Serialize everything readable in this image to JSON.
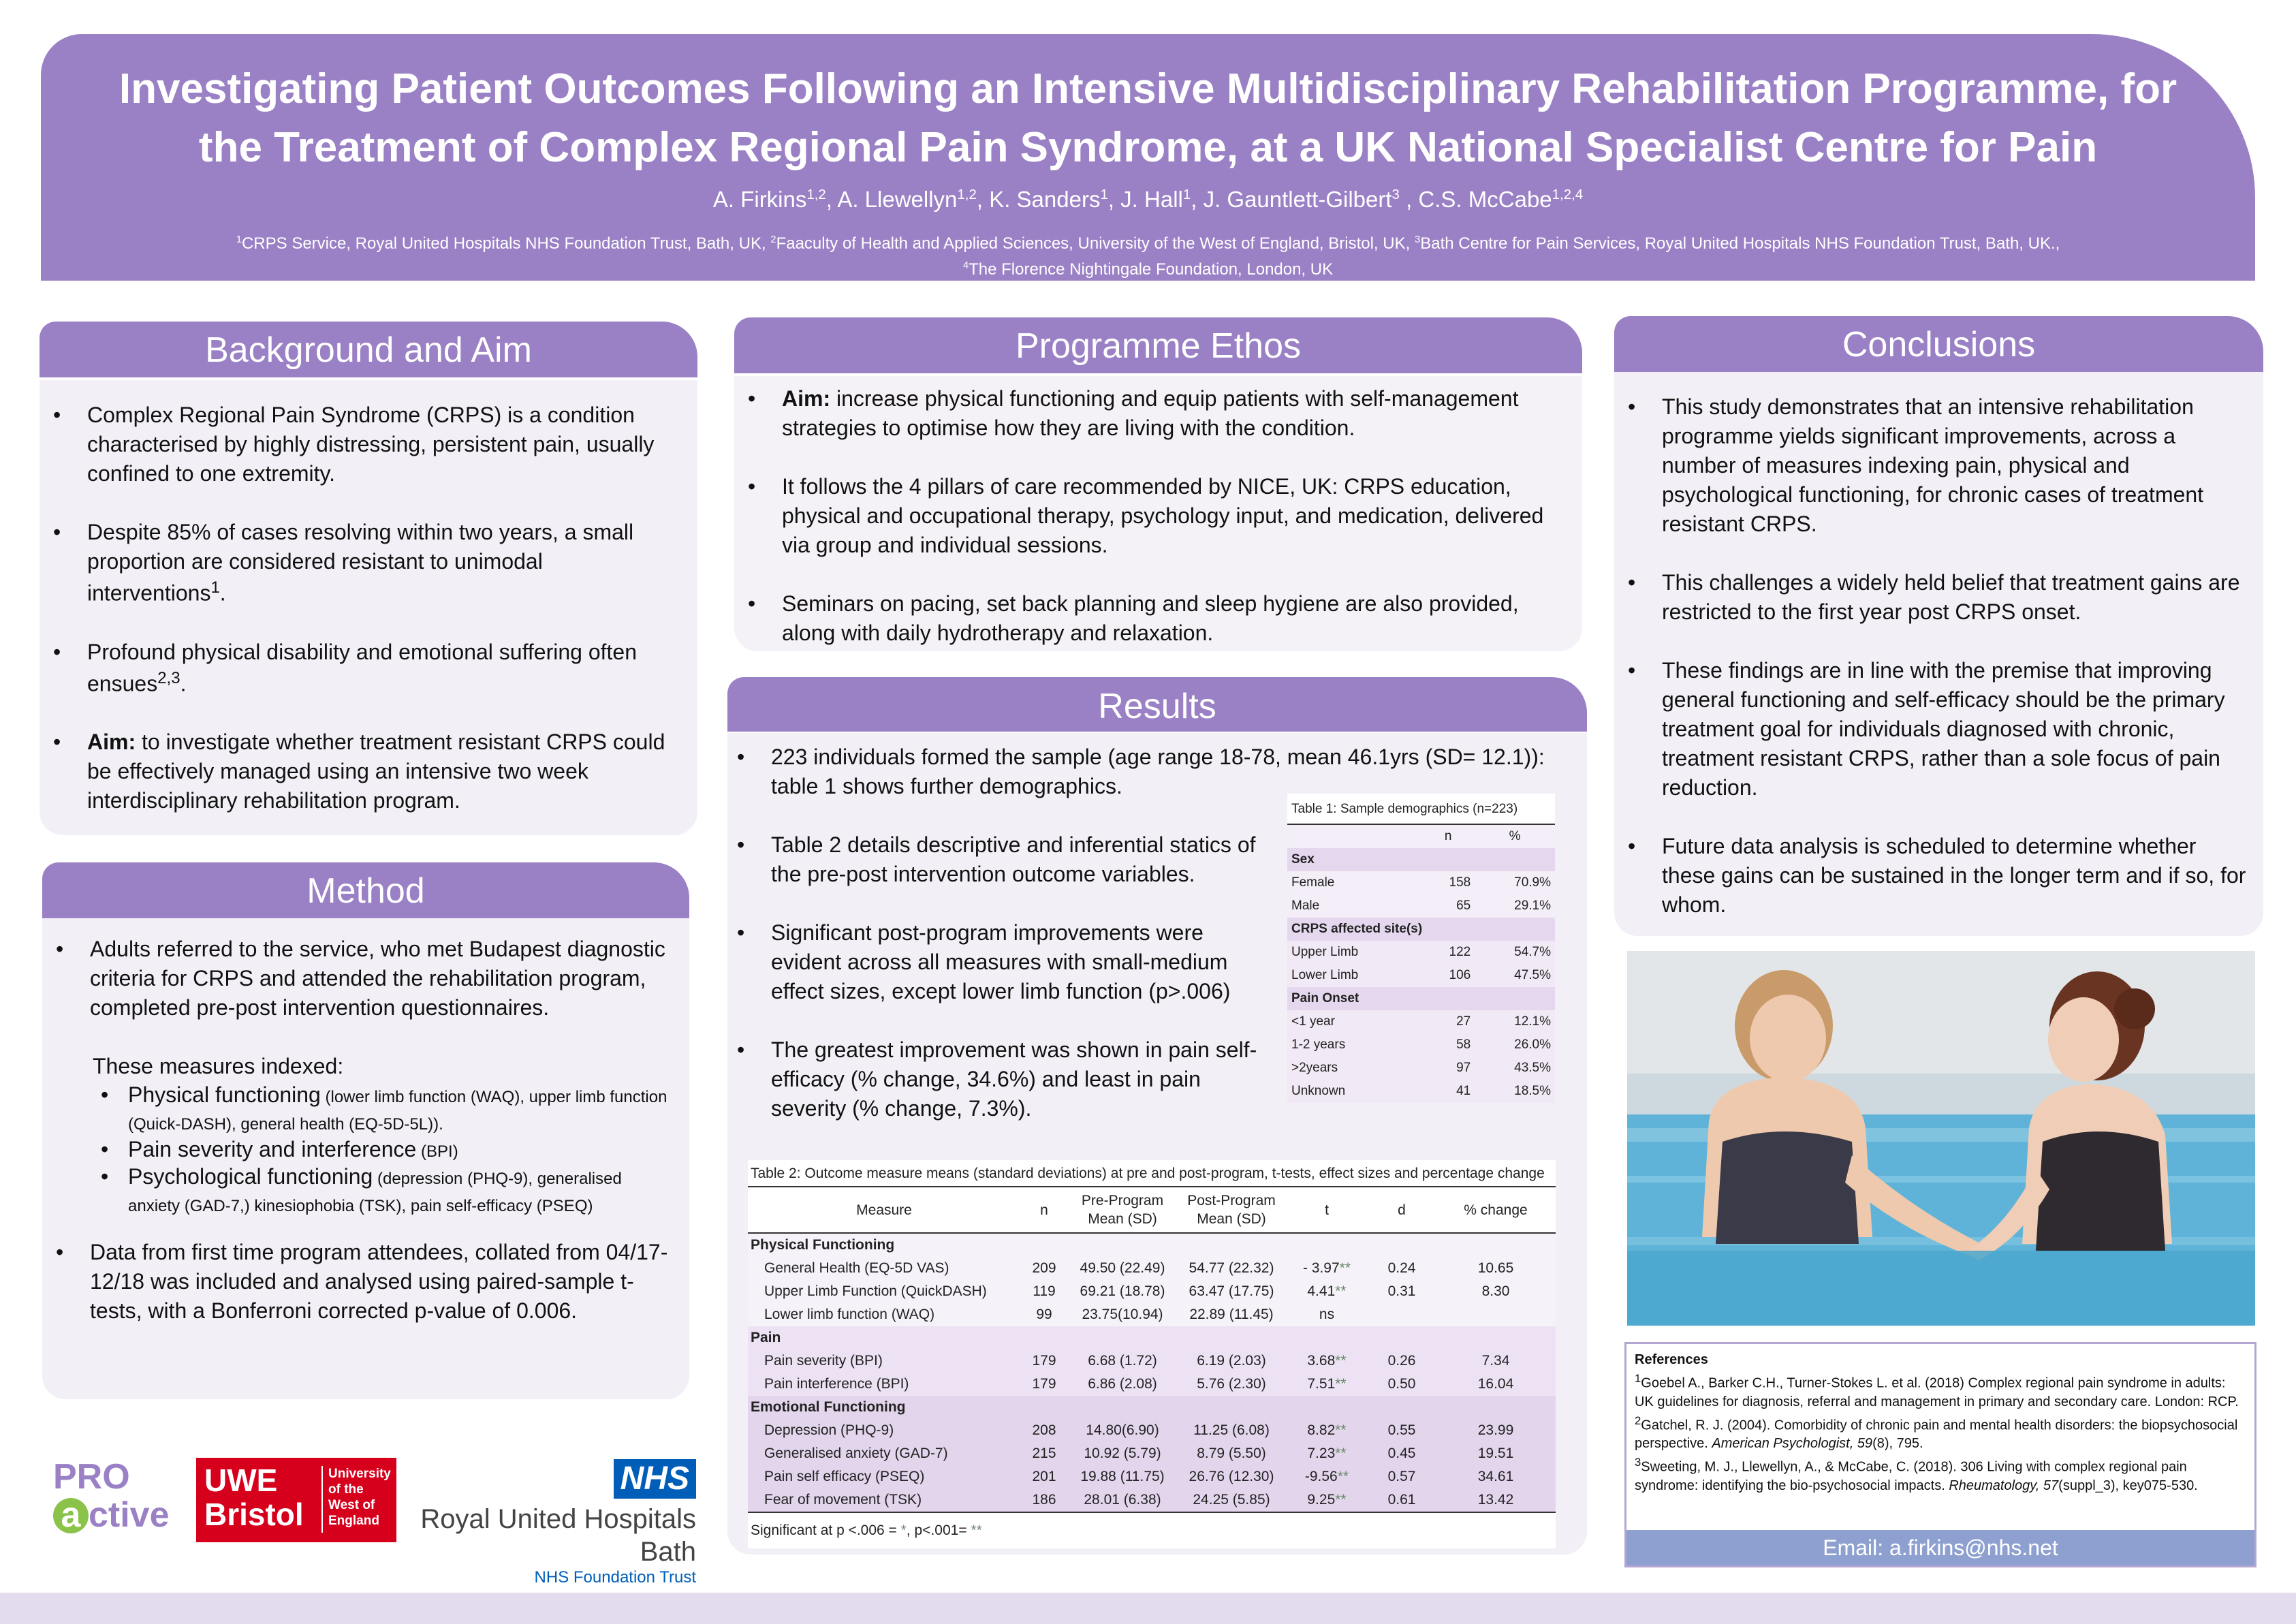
{
  "header": {
    "title": "Investigating Patient Outcomes Following an Intensive Multidisciplinary Rehabilitation Programme, for the Treatment of Complex Regional Pain Syndrome, at a UK National Specialist Centre for Pain",
    "authors": [
      {
        "name": "A. Firkins",
        "sup": "1,2"
      },
      {
        "name": "A. Llewellyn",
        "sup": "1,2"
      },
      {
        "name": "K. Sanders",
        "sup": "1"
      },
      {
        "name": "J. Hall",
        "sup": "1"
      },
      {
        "name": "J. Gauntlett-Gilbert",
        "sup": "3"
      },
      {
        "name": "C.S. McCabe",
        "sup": "1,2,4"
      }
    ],
    "affiliations": [
      {
        "sup": "1",
        "text": "CRPS Service, Royal United Hospitals NHS Foundation Trust, Bath, UK, "
      },
      {
        "sup": "2",
        "text": "Faaculty of Health and Applied Sciences, University of the West of England, Bristol, UK, "
      },
      {
        "sup": "3",
        "text": "Bath Centre for Pain Services, Royal United Hospitals NHS Foundation Trust, Bath, UK.,"
      },
      {
        "sup": "4",
        "text": "The Florence Nightingale Foundation, London, UK"
      }
    ]
  },
  "background": {
    "heading": "Background and Aim",
    "bullets": [
      {
        "text": "Complex Regional Pain Syndrome (CRPS) is a condition characterised by highly distressing, persistent pain, usually confined to one extremity."
      },
      {
        "text": "Despite 85% of cases resolving within two years, a small proportion are considered resistant to unimodal interventions",
        "sup": "1",
        "tail": "."
      },
      {
        "text": "Profound physical disability and emotional suffering often ensues",
        "sup": "2,3",
        "tail": "."
      },
      {
        "bold": "Aim:",
        "text": " to investigate whether treatment resistant CRPS could be effectively managed using an intensive two week interdisciplinary rehabilitation program."
      }
    ]
  },
  "method": {
    "heading": "Method",
    "intro": "Adults referred to the service, who met Budapest diagnostic criteria for CRPS and attended the rehabilitation program, completed pre-post intervention questionnaires.",
    "measures_label": "These measures indexed:",
    "measures": [
      {
        "main": "Physical functioning",
        "detail": " (lower limb function  (WAQ), upper limb function (Quick-DASH), general health (EQ-5D-5L))."
      },
      {
        "main": "Pain  severity  and interference",
        "detail": " (BPI)"
      },
      {
        "main": "Psychological functioning",
        "detail": " (depression (PHQ-9),  generalised anxiety (GAD-7,) kinesiophobia (TSK),  pain self-efficacy (PSEQ)"
      }
    ],
    "data_text": "Data from first time program attendees, collated from 04/17- 12/18 was included and analysed using paired-sample t-tests, with a Bonferroni corrected p-value of 0.006."
  },
  "ethos": {
    "heading": "Programme Ethos",
    "bullets": [
      {
        "bold": "Aim:",
        "text": " increase physical functioning and equip patients with self-management strategies to optimise how they are living with the condition."
      },
      {
        "text": "It follows the 4 pillars of care recommended by NICE, UK: CRPS education, physical and occupational therapy, psychology input, and medication, delivered via group and individual sessions."
      },
      {
        "text": "Seminars on pacing, set back planning and sleep hygiene are also provided, along with  daily hydrotherapy and relaxation."
      }
    ]
  },
  "results": {
    "heading": "Results",
    "bullets": [
      {
        "text": "223 individuals formed the sample (age range 18-78, mean 46.1yrs (SD= 12.1)): table 1 shows further demographics."
      },
      {
        "text": "Table 2 details descriptive and inferential statics of the pre-post intervention outcome variables."
      },
      {
        "text": "Significant  post-program improvements were evident across all measures with small-medium effect sizes, except lower limb function (p>.006)"
      },
      {
        "text": " The greatest improvement was shown in pain self-efficacy (% change, 34.6%) and least in pain severity (% change, 7.3%)."
      }
    ]
  },
  "table1": {
    "caption": "Table 1: Sample demographics (n=223)",
    "col_n": "n",
    "col_pct": "%",
    "sections": [
      {
        "title": "Sex",
        "rows": [
          [
            "Female",
            "158",
            "70.9%"
          ],
          [
            "Male",
            "65",
            "29.1%"
          ]
        ]
      },
      {
        "title": "CRPS affected site(s)",
        "rows": [
          [
            "Upper Limb",
            "122",
            "54.7%"
          ],
          [
            "Lower Limb",
            "106",
            "47.5%"
          ]
        ]
      },
      {
        "title": "Pain Onset",
        "rows": [
          [
            "<1 year",
            "27",
            "12.1%"
          ],
          [
            "1-2 years",
            "58",
            "26.0%"
          ],
          [
            ">2years",
            "97",
            "43.5%"
          ],
          [
            "Unknown",
            "41",
            "18.5%"
          ]
        ]
      }
    ]
  },
  "table2": {
    "caption": "Table 2: Outcome measure means (standard deviations) at pre and post-program, t-tests, effect sizes and percentage change",
    "headers": [
      "Measure",
      "n",
      "Pre-Program Mean (SD)",
      "Post-Program Mean (SD)",
      "t",
      "d",
      "% change"
    ],
    "sections": [
      {
        "title": "Physical Functioning",
        "rows": [
          {
            "measure": "General Health (EQ-5D VAS)",
            "n": "209",
            "pre": "49.50 (22.49)",
            "post": "54.77 (22.32)",
            "t": "- 3.97",
            "star": "**",
            "d": "0.24",
            "pct": "10.65"
          },
          {
            "measure": "Upper Limb Function (QuickDASH)",
            "n": "119",
            "pre": "69.21 (18.78)",
            "post": "63.47 (17.75)",
            "t": "4.41",
            "star": "**",
            "d": "0.31",
            "pct": "8.30"
          },
          {
            "measure": "Lower limb function (WAQ)",
            "n": "99",
            "pre": "23.75(10.94)",
            "post": "22.89 (11.45)",
            "t": "ns",
            "star": "",
            "d": "",
            "pct": ""
          }
        ]
      },
      {
        "title": "Pain",
        "rows": [
          {
            "measure": "Pain severity (BPI)",
            "n": "179",
            "pre": "6.68 (1.72)",
            "post": "6.19 (2.03)",
            "t": "3.68",
            "star": "**",
            "d": "0.26",
            "pct": "7.34"
          },
          {
            "measure": "Pain interference (BPI)",
            "n": "179",
            "pre": "6.86 (2.08)",
            "post": "5.76 (2.30)",
            "t": "7.51",
            "star": "**",
            "d": "0.50",
            "pct": "16.04"
          }
        ]
      },
      {
        "title": "Emotional Functioning",
        "rows": [
          {
            "measure": "Depression (PHQ-9)",
            "n": "208",
            "pre": "14.80(6.90)",
            "post": "11.25 (6.08)",
            "t": "8.82",
            "star": "**",
            "d": "0.55",
            "pct": "23.99"
          },
          {
            "measure": "Generalised anxiety (GAD-7)",
            "n": "215",
            "pre": "10.92 (5.79)",
            "post": "8.79 (5.50)",
            "t": "7.23",
            "star": "**",
            "d": "0.45",
            "pct": "19.51"
          },
          {
            "measure": "Pain self efficacy (PSEQ)",
            "n": "201",
            "pre": "19.88 (11.75)",
            "post": "26.76 (12.30)",
            "t": "-9.56",
            "star": "**",
            "d": "0.57",
            "pct": "34.61"
          },
          {
            "measure": "Fear of movement (TSK)",
            "n": "186",
            "pre": "28.01 (6.38)",
            "post": "24.25 (5.85)",
            "t": "9.25",
            "star": "**",
            "d": "0.61",
            "pct": "13.42"
          }
        ]
      }
    ],
    "footnote_prefix": "Significant at p <.006 = ",
    "footnote_star1": "*",
    "footnote_mid": ",  p<.001= ",
    "footnote_star2": "**"
  },
  "conclusions": {
    "heading": "Conclusions",
    "bullets": [
      {
        "text": "This study demonstrates that an intensive rehabilitation programme yields significant improvements, across a number of measures indexing pain, physical and psychological functioning, for chronic cases of treatment resistant CRPS."
      },
      {
        "text": "This challenges a widely held belief that treatment gains are restricted to the first year post CRPS onset."
      },
      {
        "text": "These findings are in line with the premise that improving general functioning and self-efficacy should be the primary treatment goal for individuals diagnosed with chronic, treatment resistant CRPS, rather than a sole focus of pain reduction."
      },
      {
        "text": "Future data analysis is scheduled to determine whether these gains can be sustained in the longer term and if so, for whom."
      }
    ]
  },
  "references": {
    "heading": "References",
    "items": [
      {
        "sup": "1",
        "pre": "Goebel A., Barker C.H., Turner-Stokes L. et al. (2018) Complex regional pain syndrome in adults: UK guidelines for diagnosis, referral and management in primary and secondary care. London: RCP.",
        "italic": "",
        "post": ""
      },
      {
        "sup": "2",
        "pre": "Gatchel, R. J. (2004). Comorbidity of chronic pain and mental health disorders: the biopsychosocial perspective. ",
        "italic": "American Psychologist, 59",
        "post": "(8), 795."
      },
      {
        "sup": "3",
        "pre": "Sweeting, M. J., Llewellyn, A., & McCabe, C. (2018). 306 Living with complex regional pain syndrome: identifying the bio-psychosocial impacts. ",
        "italic": "Rheumatology, 57",
        "post": "(suppl_3), key075-530."
      }
    ],
    "email": "Email:  a.firkins@nhs.net"
  },
  "logos": {
    "proactive_pro": "PRO",
    "proactive_a": "a",
    "proactive_ctive": "ctive",
    "uwe_big_1": "UWE",
    "uwe_big_2": "Bristol",
    "uwe_small_1": "University",
    "uwe_small_2": "of the",
    "uwe_small_3": "West of",
    "uwe_small_4": "England",
    "nhs": "NHS",
    "hospital_name": "Royal United Hospitals Bath",
    "trust": "NHS Foundation Trust"
  },
  "colors": {
    "accent": "#9a80c4",
    "panel_bg": "#f2f0f6",
    "nhs_blue": "#005eb8",
    "uwe_red": "#d6001c",
    "email_bar": "#8ea0cf"
  }
}
